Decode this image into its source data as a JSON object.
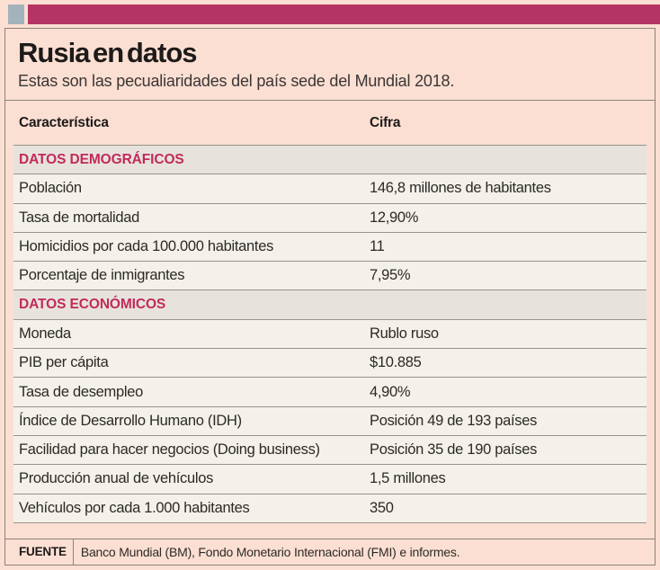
{
  "colors": {
    "background": "#fbdfd3",
    "accent_bar": "#b43463",
    "brand_square": "#a2b3bc",
    "box_border": "#8d8276",
    "section_bg": "#e7e3dc",
    "section_text": "#c22a5b",
    "row_bg": "#f4f1eb",
    "row_divider": "#97928a",
    "text_dark": "#1d1a19"
  },
  "footer": {
    "source_label": "FUENTE"
  },
  "chart_data": {
    "type": "table",
    "title": "Rusia en datos",
    "subtitle": "Estas son las pecualiaridades del país sede del Mundial 2018.",
    "columns": [
      "Característica",
      "Cifra"
    ],
    "sections": [
      {
        "name": "DATOS DEMOGRÁFICOS",
        "rows": [
          [
            "Población",
            "146,8 millones de habitantes"
          ],
          [
            "Tasa de mortalidad",
            "12,90%"
          ],
          [
            "Homicidios por cada 100.000 habitantes",
            "11"
          ],
          [
            "Porcentaje de inmigrantes",
            "7,95%"
          ]
        ]
      },
      {
        "name": "DATOS ECONÓMICOS",
        "rows": [
          [
            "Moneda",
            "Rublo ruso"
          ],
          [
            "PIB per cápita",
            "$10.885"
          ],
          [
            "Tasa de desempleo",
            "4,90%"
          ],
          [
            "Índice de Desarrollo Humano (IDH)",
            "Posición 49 de 193 países"
          ],
          [
            "Facilidad para hacer negocios (Doing business)",
            "Posición 35 de 190 países"
          ],
          [
            "Producción anual de vehículos",
            "1,5 millones"
          ],
          [
            "Vehículos por cada 1.000 habitantes",
            "350"
          ]
        ]
      }
    ],
    "source": "Banco Mundial (BM), Fondo Monetario Internacional (FMI) e informes."
  }
}
